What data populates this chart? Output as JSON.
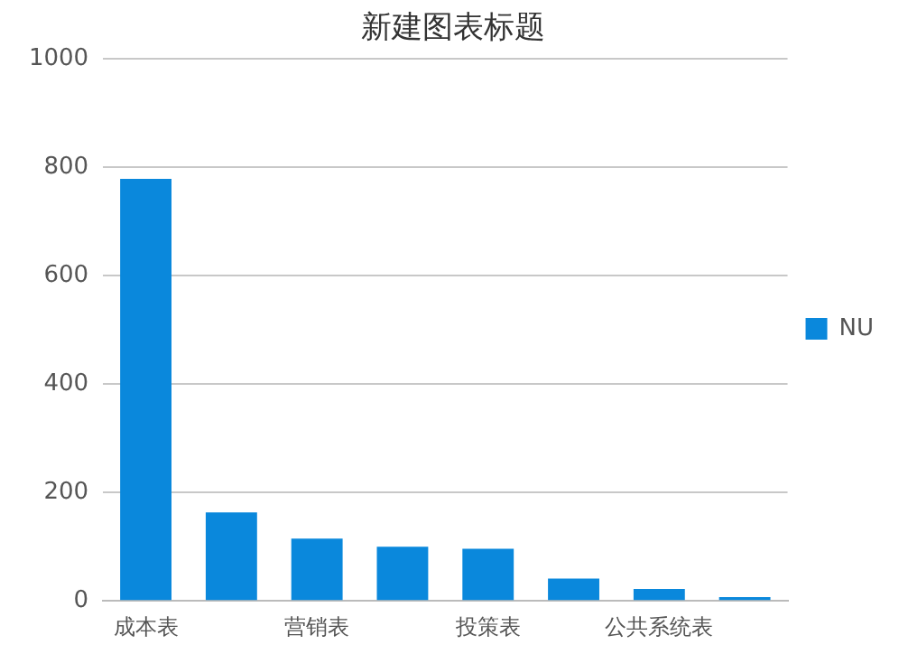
{
  "chart_data": {
    "type": "bar",
    "title": "新建图表标题",
    "categories": [
      "成本表",
      null,
      "营销表",
      null,
      "投策表",
      null,
      "公共系统表",
      null
    ],
    "series": [
      {
        "name": "NU",
        "color": "#0a88dc",
        "values": [
          778,
          163,
          115,
          100,
          96,
          41,
          22,
          7
        ]
      }
    ],
    "ylim": [
      0,
      1000
    ],
    "yticks": [
      0,
      200,
      400,
      600,
      800,
      1000
    ],
    "grid": "y",
    "legend": "right"
  }
}
